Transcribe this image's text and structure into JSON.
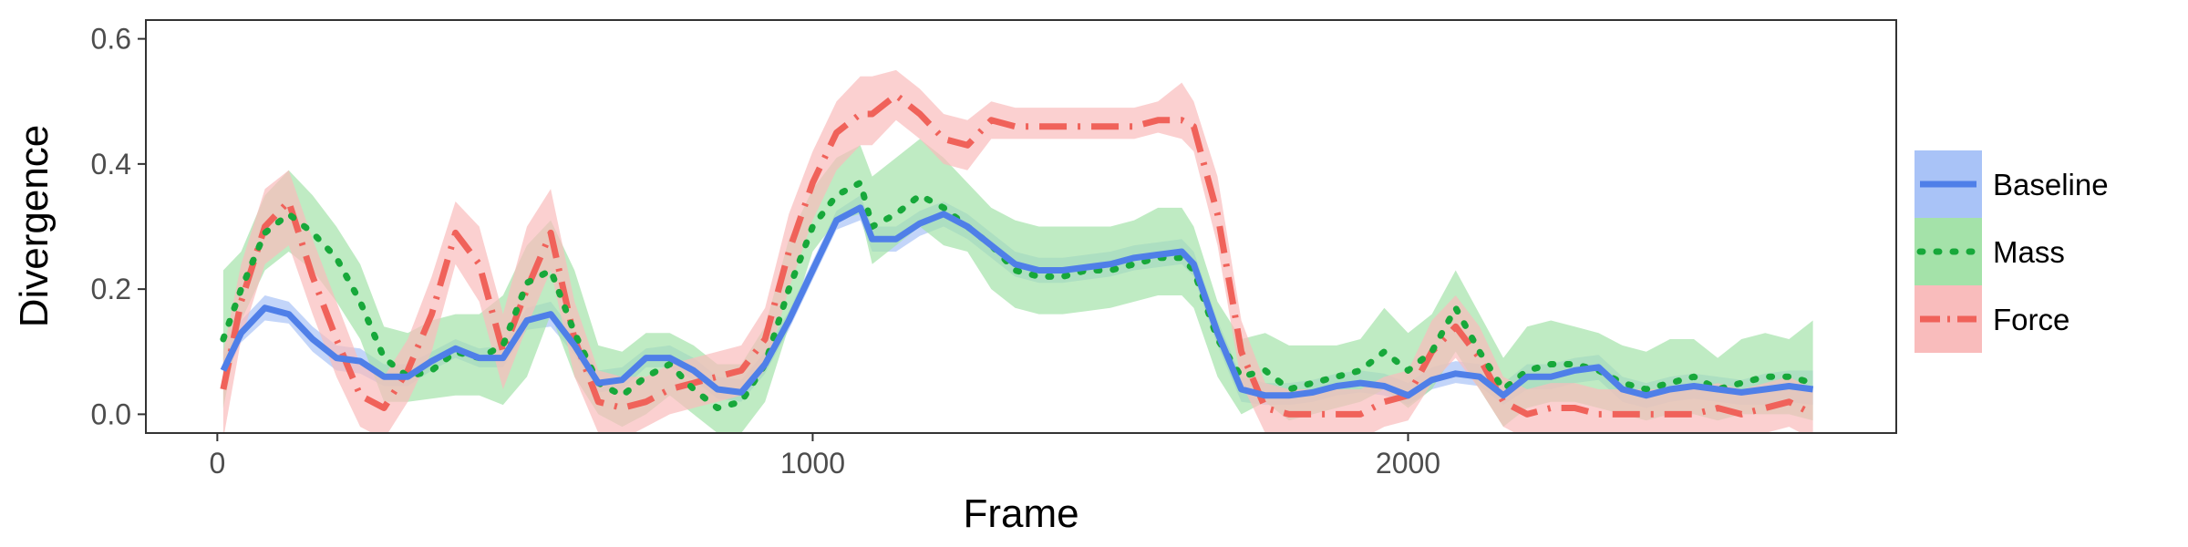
{
  "chart_data": {
    "type": "line",
    "xlabel": "Frame",
    "ylabel": "Divergence",
    "xlim": [
      -120,
      2820
    ],
    "ylim": [
      -0.03,
      0.63
    ],
    "xticks": [
      0,
      1000,
      2000
    ],
    "yticks": [
      0.0,
      0.2,
      0.4,
      0.6
    ],
    "xtick_labels": [
      "0",
      "1000",
      "2000"
    ],
    "ytick_labels": [
      "0.0",
      "0.2",
      "0.4",
      "0.6"
    ],
    "grid": false,
    "legend_position": "right",
    "series": [
      {
        "name": "Baseline",
        "color": "#4f7fe8",
        "band_color": "#a9c3f7",
        "line_style": "solid",
        "x": [
          10,
          40,
          80,
          120,
          160,
          200,
          240,
          280,
          320,
          360,
          400,
          440,
          480,
          520,
          560,
          600,
          640,
          680,
          720,
          760,
          800,
          840,
          880,
          920,
          960,
          1000,
          1040,
          1080,
          1100,
          1140,
          1180,
          1220,
          1260,
          1300,
          1340,
          1380,
          1420,
          1460,
          1500,
          1540,
          1580,
          1620,
          1640,
          1680,
          1720,
          1760,
          1800,
          1840,
          1880,
          1920,
          1960,
          2000,
          2040,
          2080,
          2120,
          2160,
          2200,
          2240,
          2280,
          2320,
          2360,
          2400,
          2440,
          2480,
          2520,
          2560,
          2600,
          2640,
          2680
        ],
        "y": [
          0.07,
          0.13,
          0.17,
          0.16,
          0.12,
          0.09,
          0.085,
          0.06,
          0.06,
          0.085,
          0.105,
          0.09,
          0.09,
          0.15,
          0.16,
          0.11,
          0.05,
          0.055,
          0.09,
          0.09,
          0.07,
          0.04,
          0.035,
          0.08,
          0.15,
          0.23,
          0.31,
          0.33,
          0.28,
          0.28,
          0.305,
          0.32,
          0.3,
          0.27,
          0.24,
          0.23,
          0.23,
          0.235,
          0.24,
          0.25,
          0.255,
          0.26,
          0.24,
          0.13,
          0.04,
          0.03,
          0.03,
          0.035,
          0.045,
          0.05,
          0.045,
          0.03,
          0.055,
          0.065,
          0.06,
          0.03,
          0.06,
          0.06,
          0.07,
          0.075,
          0.04,
          0.03,
          0.04,
          0.045,
          0.04,
          0.035,
          0.04,
          0.045,
          0.04
        ],
        "lower": [
          0.055,
          0.115,
          0.15,
          0.145,
          0.1,
          0.07,
          0.065,
          0.045,
          0.045,
          0.07,
          0.09,
          0.075,
          0.075,
          0.135,
          0.14,
          0.095,
          0.035,
          0.04,
          0.075,
          0.075,
          0.055,
          0.025,
          0.02,
          0.065,
          0.135,
          0.215,
          0.295,
          0.31,
          0.26,
          0.26,
          0.285,
          0.3,
          0.28,
          0.25,
          0.22,
          0.21,
          0.21,
          0.215,
          0.22,
          0.23,
          0.235,
          0.24,
          0.22,
          0.11,
          0.02,
          0.015,
          0.015,
          0.02,
          0.03,
          0.035,
          0.03,
          0.015,
          0.04,
          0.05,
          0.045,
          0.015,
          0.04,
          0.04,
          0.05,
          0.055,
          0.02,
          0.01,
          0.02,
          0.025,
          0.02,
          0.015,
          0.015,
          0.02,
          0.015
        ],
        "upper": [
          0.09,
          0.15,
          0.19,
          0.18,
          0.14,
          0.11,
          0.105,
          0.08,
          0.08,
          0.1,
          0.12,
          0.105,
          0.11,
          0.17,
          0.18,
          0.13,
          0.07,
          0.075,
          0.105,
          0.11,
          0.09,
          0.06,
          0.055,
          0.1,
          0.165,
          0.245,
          0.325,
          0.35,
          0.3,
          0.3,
          0.325,
          0.34,
          0.32,
          0.29,
          0.26,
          0.25,
          0.25,
          0.255,
          0.26,
          0.27,
          0.275,
          0.28,
          0.26,
          0.15,
          0.06,
          0.05,
          0.05,
          0.055,
          0.065,
          0.07,
          0.065,
          0.05,
          0.075,
          0.085,
          0.08,
          0.05,
          0.08,
          0.08,
          0.09,
          0.095,
          0.06,
          0.05,
          0.06,
          0.065,
          0.06,
          0.055,
          0.065,
          0.07,
          0.07
        ]
      },
      {
        "name": "Mass",
        "color": "#17a83a",
        "band_color": "#a4e2a9",
        "line_style": "dotted",
        "x": [
          10,
          40,
          80,
          120,
          160,
          200,
          240,
          280,
          320,
          360,
          400,
          440,
          480,
          520,
          560,
          600,
          640,
          680,
          720,
          760,
          800,
          840,
          880,
          920,
          960,
          1000,
          1040,
          1080,
          1100,
          1140,
          1180,
          1220,
          1260,
          1300,
          1340,
          1380,
          1420,
          1460,
          1500,
          1540,
          1580,
          1620,
          1640,
          1680,
          1720,
          1760,
          1800,
          1840,
          1880,
          1920,
          1960,
          2000,
          2040,
          2080,
          2120,
          2160,
          2200,
          2240,
          2280,
          2320,
          2360,
          2400,
          2440,
          2480,
          2520,
          2560,
          2600,
          2640,
          2680
        ],
        "y": [
          0.12,
          0.2,
          0.29,
          0.32,
          0.29,
          0.25,
          0.18,
          0.09,
          0.06,
          0.07,
          0.1,
          0.09,
          0.11,
          0.21,
          0.23,
          0.13,
          0.05,
          0.03,
          0.06,
          0.08,
          0.04,
          0.01,
          0.02,
          0.08,
          0.2,
          0.3,
          0.35,
          0.37,
          0.3,
          0.32,
          0.35,
          0.33,
          0.3,
          0.27,
          0.23,
          0.22,
          0.22,
          0.23,
          0.23,
          0.24,
          0.25,
          0.25,
          0.23,
          0.12,
          0.06,
          0.07,
          0.04,
          0.05,
          0.06,
          0.07,
          0.1,
          0.07,
          0.1,
          0.17,
          0.1,
          0.04,
          0.07,
          0.08,
          0.08,
          0.07,
          0.05,
          0.04,
          0.05,
          0.06,
          0.04,
          0.05,
          0.06,
          0.06,
          0.05
        ],
        "lower": [
          0.01,
          0.15,
          0.23,
          0.26,
          0.23,
          0.18,
          0.12,
          0.02,
          0.02,
          0.025,
          0.03,
          0.03,
          0.015,
          0.06,
          0.16,
          0.06,
          0.0,
          -0.02,
          0.0,
          0.03,
          0.0,
          -0.03,
          -0.03,
          0.02,
          0.14,
          0.26,
          0.31,
          0.32,
          0.24,
          0.27,
          0.3,
          0.27,
          0.26,
          0.2,
          0.17,
          0.16,
          0.16,
          0.165,
          0.17,
          0.18,
          0.19,
          0.19,
          0.17,
          0.06,
          0.0,
          0.02,
          -0.01,
          0.0,
          0.01,
          0.02,
          0.04,
          0.01,
          0.04,
          0.1,
          0.04,
          -0.02,
          0.01,
          0.02,
          0.02,
          0.01,
          0.0,
          -0.01,
          0.0,
          0.0,
          -0.01,
          0.0,
          0.0,
          0.0,
          -0.01
        ],
        "upper": [
          0.23,
          0.26,
          0.35,
          0.39,
          0.35,
          0.3,
          0.24,
          0.14,
          0.13,
          0.15,
          0.16,
          0.16,
          0.19,
          0.27,
          0.31,
          0.23,
          0.11,
          0.1,
          0.13,
          0.13,
          0.11,
          0.08,
          0.08,
          0.14,
          0.28,
          0.36,
          0.41,
          0.43,
          0.38,
          0.41,
          0.44,
          0.41,
          0.37,
          0.33,
          0.31,
          0.3,
          0.3,
          0.3,
          0.3,
          0.31,
          0.33,
          0.33,
          0.3,
          0.18,
          0.12,
          0.13,
          0.11,
          0.11,
          0.11,
          0.12,
          0.17,
          0.13,
          0.16,
          0.23,
          0.16,
          0.09,
          0.14,
          0.15,
          0.14,
          0.13,
          0.11,
          0.1,
          0.12,
          0.12,
          0.09,
          0.12,
          0.13,
          0.12,
          0.15
        ]
      },
      {
        "name": "Force",
        "color": "#f0625a",
        "band_color": "#f9bcbc",
        "line_style": "dashdot",
        "x": [
          10,
          40,
          80,
          120,
          160,
          200,
          240,
          280,
          320,
          360,
          400,
          440,
          480,
          520,
          560,
          600,
          640,
          680,
          720,
          760,
          800,
          840,
          880,
          920,
          960,
          1000,
          1040,
          1080,
          1100,
          1140,
          1180,
          1220,
          1260,
          1300,
          1340,
          1380,
          1420,
          1460,
          1500,
          1540,
          1580,
          1620,
          1640,
          1680,
          1720,
          1760,
          1800,
          1840,
          1880,
          1920,
          1960,
          2000,
          2040,
          2080,
          2120,
          2160,
          2200,
          2240,
          2280,
          2320,
          2360,
          2400,
          2440,
          2480,
          2520,
          2560,
          2600,
          2640,
          2680
        ],
        "y": [
          0.04,
          0.18,
          0.3,
          0.34,
          0.22,
          0.12,
          0.03,
          0.01,
          0.07,
          0.16,
          0.29,
          0.24,
          0.1,
          0.2,
          0.29,
          0.12,
          0.02,
          0.01,
          0.02,
          0.04,
          0.05,
          0.06,
          0.07,
          0.12,
          0.26,
          0.37,
          0.45,
          0.48,
          0.48,
          0.51,
          0.48,
          0.44,
          0.43,
          0.47,
          0.46,
          0.46,
          0.46,
          0.46,
          0.46,
          0.46,
          0.47,
          0.47,
          0.46,
          0.32,
          0.1,
          0.01,
          0.0,
          0.0,
          0.0,
          0.0,
          0.02,
          0.03,
          0.1,
          0.14,
          0.09,
          0.02,
          0.0,
          0.01,
          0.01,
          0.0,
          0.0,
          0.0,
          0.0,
          0.0,
          0.01,
          0.0,
          0.01,
          0.02,
          0.0
        ],
        "lower": [
          -0.04,
          0.12,
          0.24,
          0.27,
          0.16,
          0.06,
          -0.02,
          -0.04,
          0.02,
          0.1,
          0.24,
          0.18,
          0.04,
          0.14,
          0.23,
          0.06,
          -0.03,
          -0.04,
          -0.02,
          0.0,
          0.01,
          0.02,
          0.03,
          0.07,
          0.2,
          0.31,
          0.39,
          0.43,
          0.43,
          0.47,
          0.44,
          0.4,
          0.39,
          0.44,
          0.44,
          0.44,
          0.44,
          0.44,
          0.44,
          0.44,
          0.45,
          0.44,
          0.42,
          0.27,
          0.05,
          -0.03,
          -0.04,
          -0.04,
          -0.04,
          -0.04,
          -0.02,
          -0.01,
          0.05,
          0.09,
          0.04,
          -0.02,
          -0.04,
          -0.03,
          -0.03,
          -0.04,
          -0.04,
          -0.04,
          -0.04,
          -0.04,
          -0.03,
          -0.04,
          -0.03,
          -0.02,
          -0.04
        ],
        "upper": [
          0.1,
          0.24,
          0.36,
          0.39,
          0.28,
          0.18,
          0.08,
          0.06,
          0.12,
          0.22,
          0.34,
          0.3,
          0.16,
          0.3,
          0.36,
          0.18,
          0.07,
          0.06,
          0.06,
          0.08,
          0.09,
          0.1,
          0.11,
          0.17,
          0.32,
          0.42,
          0.5,
          0.54,
          0.54,
          0.55,
          0.52,
          0.48,
          0.47,
          0.5,
          0.49,
          0.49,
          0.49,
          0.49,
          0.49,
          0.49,
          0.5,
          0.53,
          0.5,
          0.38,
          0.15,
          0.05,
          0.04,
          0.04,
          0.04,
          0.04,
          0.06,
          0.07,
          0.15,
          0.19,
          0.14,
          0.06,
          0.04,
          0.05,
          0.05,
          0.04,
          0.04,
          0.04,
          0.04,
          0.04,
          0.05,
          0.04,
          0.05,
          0.06,
          0.04
        ]
      }
    ]
  }
}
